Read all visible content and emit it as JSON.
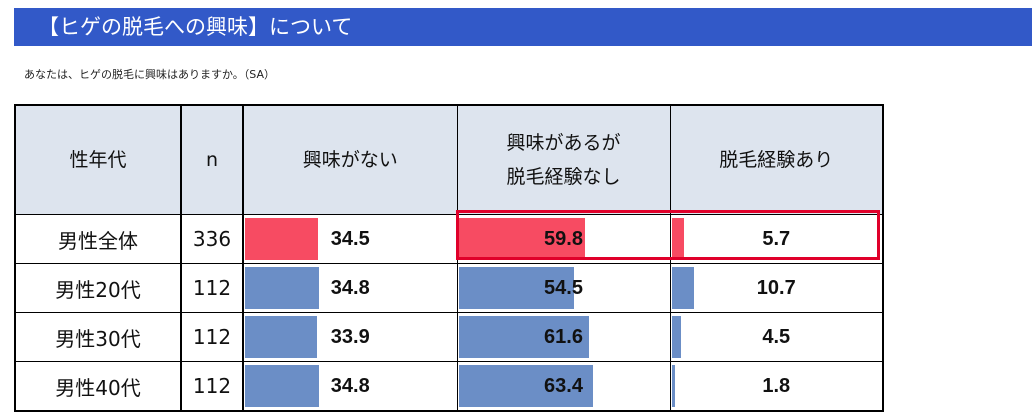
{
  "header": {
    "title": "【ヒゲの脱毛への興味】について",
    "question": "あなたは、ヒゲの脱毛に興味はありますか。（SA）"
  },
  "colors": {
    "title_bar": "#3259c8",
    "bar_default": "#6b8ec6",
    "bar_highlight": "#f74b62",
    "highlight_border": "#e0002a",
    "header_bg": "#dde4ee"
  },
  "chart_data": {
    "type": "table",
    "columns": [
      "性年代",
      "n",
      "興味がない",
      "興味があるが\n脱毛経験なし",
      "脱毛経験あり"
    ],
    "columns_lines": [
      [
        "性年代"
      ],
      [
        "n"
      ],
      [
        "興味がない"
      ],
      [
        "興味があるが",
        "脱毛経験なし"
      ],
      [
        "脱毛経験あり"
      ]
    ],
    "rows": [
      {
        "label": "男性全体",
        "n": "336",
        "values": [
          34.5,
          59.8,
          5.7
        ],
        "display": [
          "34.5",
          "59.8",
          "5.7"
        ],
        "highlight": true
      },
      {
        "label": "男性20代",
        "n": "112",
        "values": [
          34.8,
          54.5,
          10.7
        ],
        "display": [
          "34.8",
          "54.5",
          "10.7"
        ],
        "highlight": false
      },
      {
        "label": "男性30代",
        "n": "112",
        "values": [
          33.9,
          61.6,
          4.5
        ],
        "display": [
          "33.9",
          "61.6",
          "4.5"
        ],
        "highlight": false
      },
      {
        "label": "男性40代",
        "n": "112",
        "values": [
          34.8,
          63.4,
          1.8
        ],
        "display": [
          "34.8",
          "63.4",
          "1.8"
        ],
        "highlight": false
      }
    ],
    "bar_scale_max": 100,
    "highlighted_cells": {
      "row": 0,
      "columns": [
        1,
        2
      ]
    }
  }
}
